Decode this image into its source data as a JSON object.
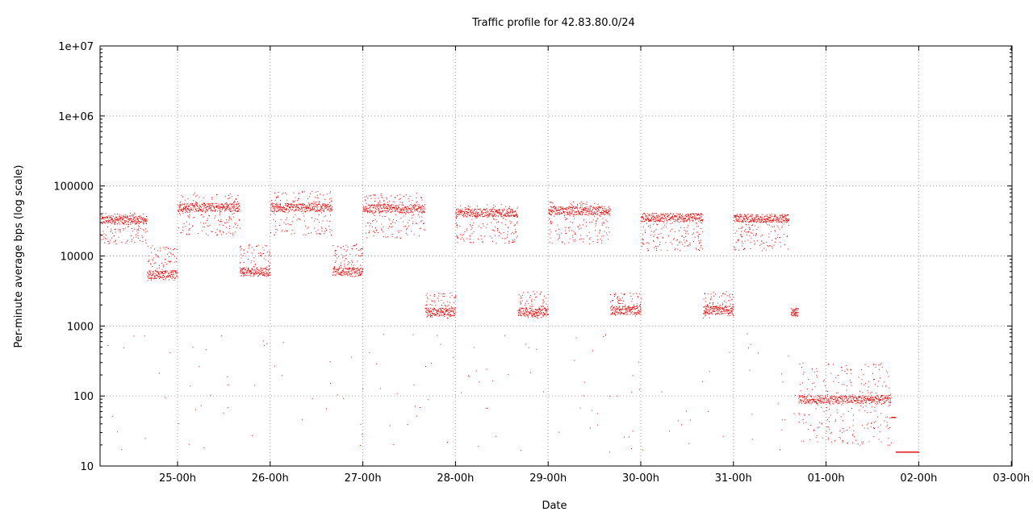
{
  "chart_data": {
    "type": "scatter",
    "title": "Traffic profile for 42.83.80.0/24",
    "xlabel": "Date",
    "ylabel": "Per-minute average bps (log scale)",
    "y_scale": "log",
    "ylim": [
      10,
      10000000
    ],
    "xlim_days_from_first_label": [
      -0.83,
      8.0
    ],
    "grid": true,
    "legend": "none",
    "marker_color": "#e00000",
    "x_tick_labels": [
      "25-00h",
      "26-00h",
      "27-00h",
      "28-00h",
      "29-00h",
      "30-00h",
      "31-00h",
      "01-00h",
      "02-00h",
      "03-00h"
    ],
    "y_tick_labels": [
      "10",
      "100",
      "1000",
      "10000",
      "100000",
      "1e+06",
      "1e+07"
    ],
    "y_tick_values": [
      10,
      100,
      1000,
      10000,
      100000,
      1000000,
      10000000
    ],
    "series": [
      {
        "segments": [
          {
            "x0": -0.83,
            "x1": -0.33,
            "main": 33000,
            "upper": 42000,
            "lower": 15000
          },
          {
            "x0": -0.33,
            "x1": 0.0,
            "main": 5500,
            "upper": 14500,
            "lower": 4500
          },
          {
            "x0": 0.0,
            "x1": 0.67,
            "main": 50000,
            "upper": 80000,
            "lower": 20000
          },
          {
            "x0": 0.67,
            "x1": 1.0,
            "main": 6000,
            "upper": 15000,
            "lower": 5000
          },
          {
            "x0": 1.0,
            "x1": 1.67,
            "main": 50000,
            "upper": 85000,
            "lower": 20000
          },
          {
            "x0": 1.67,
            "x1": 2.0,
            "main": 6000,
            "upper": 15000,
            "lower": 5000
          },
          {
            "x0": 2.0,
            "x1": 2.67,
            "main": 48000,
            "upper": 80000,
            "lower": 18000
          },
          {
            "x0": 2.67,
            "x1": 3.0,
            "main": 1600,
            "upper": 3000,
            "lower": 1300
          },
          {
            "x0": 3.0,
            "x1": 3.67,
            "main": 42000,
            "upper": 55000,
            "lower": 15000
          },
          {
            "x0": 3.67,
            "x1": 4.0,
            "main": 1600,
            "upper": 3200,
            "lower": 1300
          },
          {
            "x0": 4.0,
            "x1": 4.67,
            "main": 45000,
            "upper": 60000,
            "lower": 15000
          },
          {
            "x0": 4.67,
            "x1": 5.0,
            "main": 1700,
            "upper": 3000,
            "lower": 1400
          },
          {
            "x0": 5.0,
            "x1": 5.67,
            "main": 36000,
            "upper": 40000,
            "lower": 12000
          },
          {
            "x0": 5.67,
            "x1": 6.0,
            "main": 1700,
            "upper": 3200,
            "lower": 1300
          },
          {
            "x0": 6.0,
            "x1": 6.6,
            "main": 35000,
            "upper": 40000,
            "lower": 12000
          },
          {
            "x0": 6.62,
            "x1": 6.7,
            "main": 1600,
            "upper": 1800,
            "lower": 1400
          },
          {
            "x0": 6.7,
            "x1": 7.7,
            "main": 90,
            "upper": 300,
            "lower": 20
          },
          {
            "x0": 7.7,
            "x1": 7.75,
            "main": 50,
            "upper": 50,
            "lower": 50
          },
          {
            "x0": 7.75,
            "x1": 8.0,
            "main": 16,
            "upper": 16,
            "lower": 16
          }
        ]
      }
    ]
  }
}
